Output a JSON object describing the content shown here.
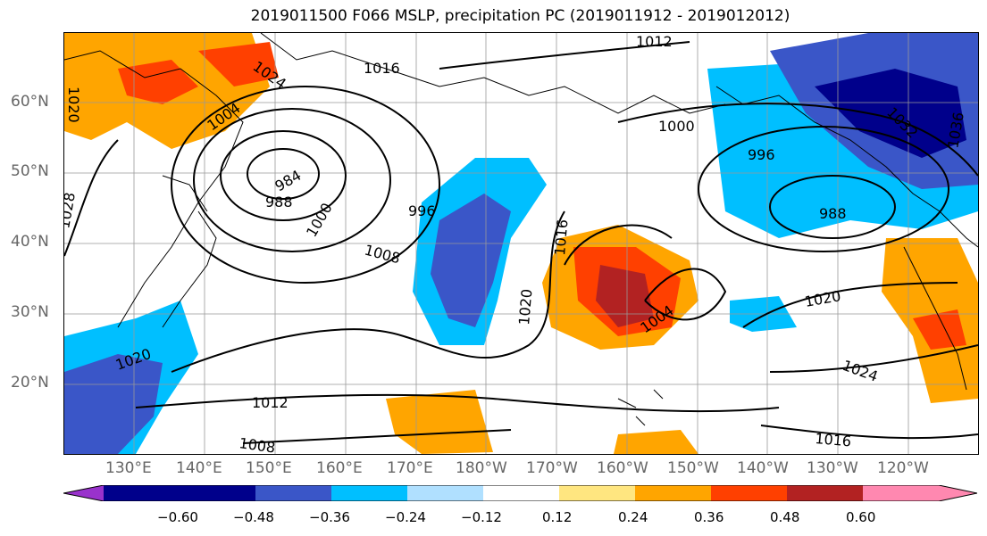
{
  "title": "2019011500 F066 MSLP, precipitation PC (2019011912 - 2019012012)",
  "latitude_labels": [
    "60°N",
    "50°N",
    "40°N",
    "30°N",
    "20°N"
  ],
  "longitude_labels": [
    "130°E",
    "140°E",
    "150°E",
    "160°E",
    "170°E",
    "180°W",
    "170°W",
    "160°W",
    "150°W",
    "140°W",
    "130°W",
    "120°W"
  ],
  "isobar_labels": [
    "1020",
    "1024",
    "1016",
    "1012",
    "1008",
    "1004",
    "1000",
    "996",
    "988",
    "984",
    "1028",
    "1032",
    "1036"
  ],
  "colorbar": {
    "ticks": [
      "−0.60",
      "−0.48",
      "−0.36",
      "−0.24",
      "−0.12",
      "0.12",
      "0.24",
      "0.36",
      "0.48",
      "0.60"
    ],
    "colors": [
      "#9932cc",
      "#00008b",
      "#3a56c8",
      "#00bfff",
      "#b0e0ff",
      "#ffffff",
      "#ffe680",
      "#ffa500",
      "#ff4000",
      "#b22222",
      "#ff88b0"
    ]
  }
}
